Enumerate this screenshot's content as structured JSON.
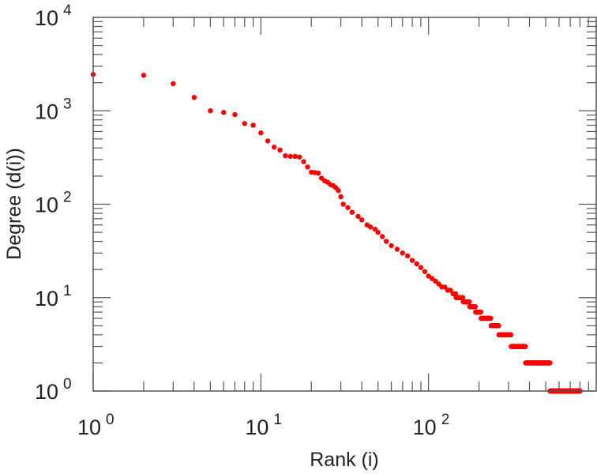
{
  "chart_data": {
    "type": "scatter",
    "title": "",
    "xlabel": "Rank (i)",
    "ylabel": "Degree (d(i))",
    "xscale": "log",
    "yscale": "log",
    "xlim": [
      1,
      1000
    ],
    "ylim": [
      1,
      10000
    ],
    "grid": false,
    "marker_color": "#ff0000",
    "x_ticks": [
      {
        "base": "10",
        "exp": "0",
        "value": 1
      },
      {
        "base": "10",
        "exp": "1",
        "value": 10
      },
      {
        "base": "10",
        "exp": "2",
        "value": 100
      }
    ],
    "y_ticks": [
      {
        "base": "10",
        "exp": "0",
        "value": 1
      },
      {
        "base": "10",
        "exp": "1",
        "value": 10
      },
      {
        "base": "10",
        "exp": "2",
        "value": 100
      },
      {
        "base": "10",
        "exp": "3",
        "value": 1000
      },
      {
        "base": "10",
        "exp": "4",
        "value": 10000
      }
    ],
    "points": [
      [
        1,
        2450
      ],
      [
        2,
        2400
      ],
      [
        3,
        1950
      ],
      [
        4,
        1390
      ],
      [
        5,
        1000
      ],
      [
        6,
        960
      ],
      [
        7,
        910
      ],
      [
        8,
        730
      ],
      [
        9,
        700
      ],
      [
        10,
        580
      ],
      [
        11,
        475
      ],
      [
        12,
        408
      ],
      [
        13,
        380
      ],
      [
        14,
        330
      ],
      [
        15,
        325
      ],
      [
        16,
        325
      ],
      [
        17,
        320
      ],
      [
        18,
        285
      ],
      [
        19,
        250
      ],
      [
        20,
        220
      ],
      [
        21,
        218
      ],
      [
        22,
        215
      ],
      [
        23,
        190
      ],
      [
        24,
        178
      ],
      [
        25,
        172
      ],
      [
        26,
        162
      ],
      [
        27,
        158
      ],
      [
        28,
        150
      ],
      [
        29,
        140
      ],
      [
        30,
        120
      ],
      [
        31,
        100
      ],
      [
        33,
        92
      ],
      [
        35,
        82
      ],
      [
        38,
        74
      ],
      [
        40,
        68
      ],
      [
        43,
        60
      ],
      [
        45,
        57
      ],
      [
        48,
        54
      ],
      [
        50,
        50
      ],
      [
        53,
        45
      ],
      [
        56,
        40
      ],
      [
        60,
        36
      ],
      [
        65,
        33
      ],
      [
        70,
        30
      ],
      [
        75,
        28
      ],
      [
        80,
        25
      ],
      [
        85,
        23
      ],
      [
        90,
        21
      ],
      [
        95,
        19
      ],
      [
        100,
        17
      ],
      [
        105,
        16
      ],
      [
        110,
        15
      ],
      [
        115,
        14
      ],
      [
        120,
        13
      ],
      [
        125,
        13
      ],
      [
        130,
        12
      ],
      [
        135,
        12
      ],
      [
        140,
        11
      ],
      [
        145,
        11
      ]
    ],
    "plateaus": [
      {
        "degree": 10,
        "rank_start": 146,
        "rank_end": 160
      },
      {
        "degree": 9,
        "rank_start": 161,
        "rank_end": 175
      },
      {
        "degree": 8,
        "rank_start": 176,
        "rank_end": 190
      },
      {
        "degree": 7,
        "rank_start": 191,
        "rank_end": 205
      },
      {
        "degree": 6,
        "rank_start": 206,
        "rank_end": 235
      },
      {
        "degree": 5,
        "rank_start": 236,
        "rank_end": 262
      },
      {
        "degree": 4,
        "rank_start": 263,
        "rank_end": 310
      },
      {
        "degree": 3,
        "rank_start": 311,
        "rank_end": 378
      },
      {
        "degree": 2,
        "rank_start": 379,
        "rank_end": 530
      },
      {
        "degree": 1,
        "rank_start": 531,
        "rank_end": 800
      }
    ]
  }
}
